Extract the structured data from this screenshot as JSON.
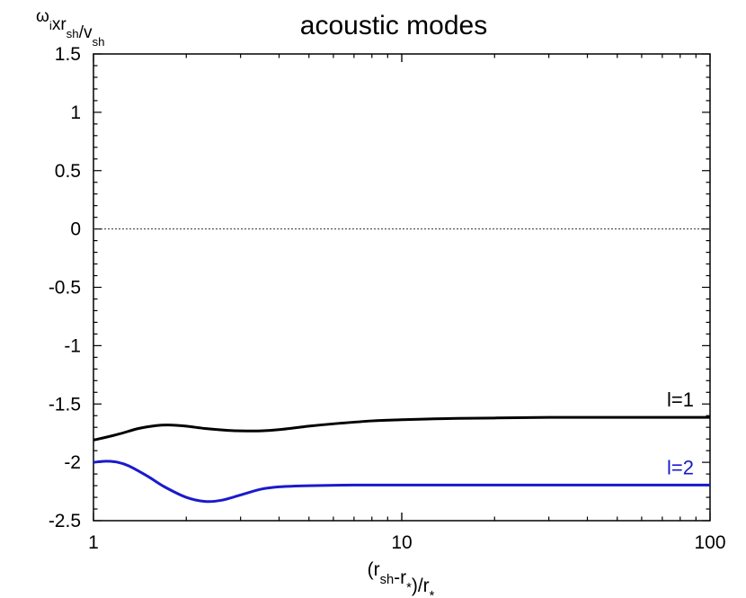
{
  "chart_data": {
    "type": "line",
    "title": "acoustic modes",
    "ylabel": {
      "parts": [
        {
          "t": "ω",
          "sub": "i"
        },
        {
          "t": "xr",
          "sub": "sh"
        },
        {
          "t": "/v",
          "sub": "sh"
        }
      ]
    },
    "xlabel": {
      "parts": [
        {
          "t": "(r",
          "sub": "sh"
        },
        {
          "t": "-r",
          "sub": "*"
        },
        {
          "t": ")/r",
          "sub": "*"
        }
      ]
    },
    "xscale": "log",
    "xlim": [
      1,
      100
    ],
    "ylim": [
      -2.5,
      1.5
    ],
    "x_ticks": [
      1,
      10,
      100
    ],
    "x_tick_labels": [
      "1",
      "10",
      "100"
    ],
    "y_ticks": [
      -2.5,
      -2,
      -1.5,
      -1,
      -0.5,
      0,
      0.5,
      1,
      1.5
    ],
    "y_tick_labels": [
      "-2.5",
      "-2",
      "-1.5",
      "-1",
      "-0.5",
      "0",
      "0.5",
      "1",
      "1.5"
    ],
    "reference_line": {
      "y": 0,
      "style": "dotted"
    },
    "grid": false,
    "series": [
      {
        "name": "l=1",
        "color": "#000000",
        "x": [
          1.0,
          1.2,
          1.4,
          1.6,
          1.75,
          2.0,
          2.3,
          2.7,
          3.0,
          3.5,
          4.0,
          5.0,
          6.0,
          8.0,
          10.0,
          14.0,
          20.0,
          30.0,
          50.0,
          100.0
        ],
        "y": [
          -1.81,
          -1.76,
          -1.71,
          -1.685,
          -1.68,
          -1.69,
          -1.71,
          -1.725,
          -1.73,
          -1.73,
          -1.72,
          -1.69,
          -1.67,
          -1.645,
          -1.635,
          -1.625,
          -1.62,
          -1.615,
          -1.615,
          -1.615
        ]
      },
      {
        "name": "l=2",
        "color": "#1a1acc",
        "x": [
          1.0,
          1.1,
          1.2,
          1.3,
          1.5,
          1.7,
          2.0,
          2.3,
          2.6,
          3.0,
          3.5,
          4.0,
          5.0,
          7.0,
          10.0,
          20.0,
          50.0,
          100.0
        ],
        "y": [
          -2.0,
          -1.99,
          -2.0,
          -2.03,
          -2.12,
          -2.21,
          -2.3,
          -2.335,
          -2.325,
          -2.28,
          -2.23,
          -2.21,
          -2.2,
          -2.195,
          -2.195,
          -2.195,
          -2.195,
          -2.195
        ]
      }
    ]
  }
}
